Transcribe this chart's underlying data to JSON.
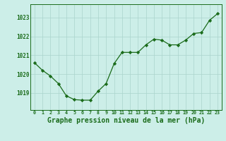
{
  "x": [
    0,
    1,
    2,
    3,
    4,
    5,
    6,
    7,
    8,
    9,
    10,
    11,
    12,
    13,
    14,
    15,
    16,
    17,
    18,
    19,
    20,
    21,
    22,
    23
  ],
  "y": [
    1020.6,
    1020.2,
    1019.9,
    1019.5,
    1018.85,
    1018.65,
    1018.62,
    1018.62,
    1019.1,
    1019.5,
    1020.55,
    1021.15,
    1021.15,
    1021.15,
    1021.55,
    1021.85,
    1021.8,
    1021.55,
    1021.55,
    1021.8,
    1022.15,
    1022.2,
    1022.85,
    1023.2
  ],
  "line_color": "#1a6b1a",
  "marker": "D",
  "marker_size": 2.2,
  "bg_color": "#cceee8",
  "grid_color": "#aad4cc",
  "title": "Graphe pression niveau de la mer (hPa)",
  "title_fontsize": 7.0,
  "ytick_labels": [
    "1019",
    "1020",
    "1021",
    "1022",
    "1023"
  ],
  "ylim": [
    1018.1,
    1023.7
  ],
  "xlim": [
    -0.5,
    23.5
  ],
  "xtick_labels": [
    "0",
    "1",
    "2",
    "3",
    "4",
    "5",
    "6",
    "7",
    "8",
    "9",
    "10",
    "11",
    "12",
    "13",
    "14",
    "15",
    "16",
    "17",
    "18",
    "19",
    "20",
    "21",
    "22",
    "23"
  ]
}
